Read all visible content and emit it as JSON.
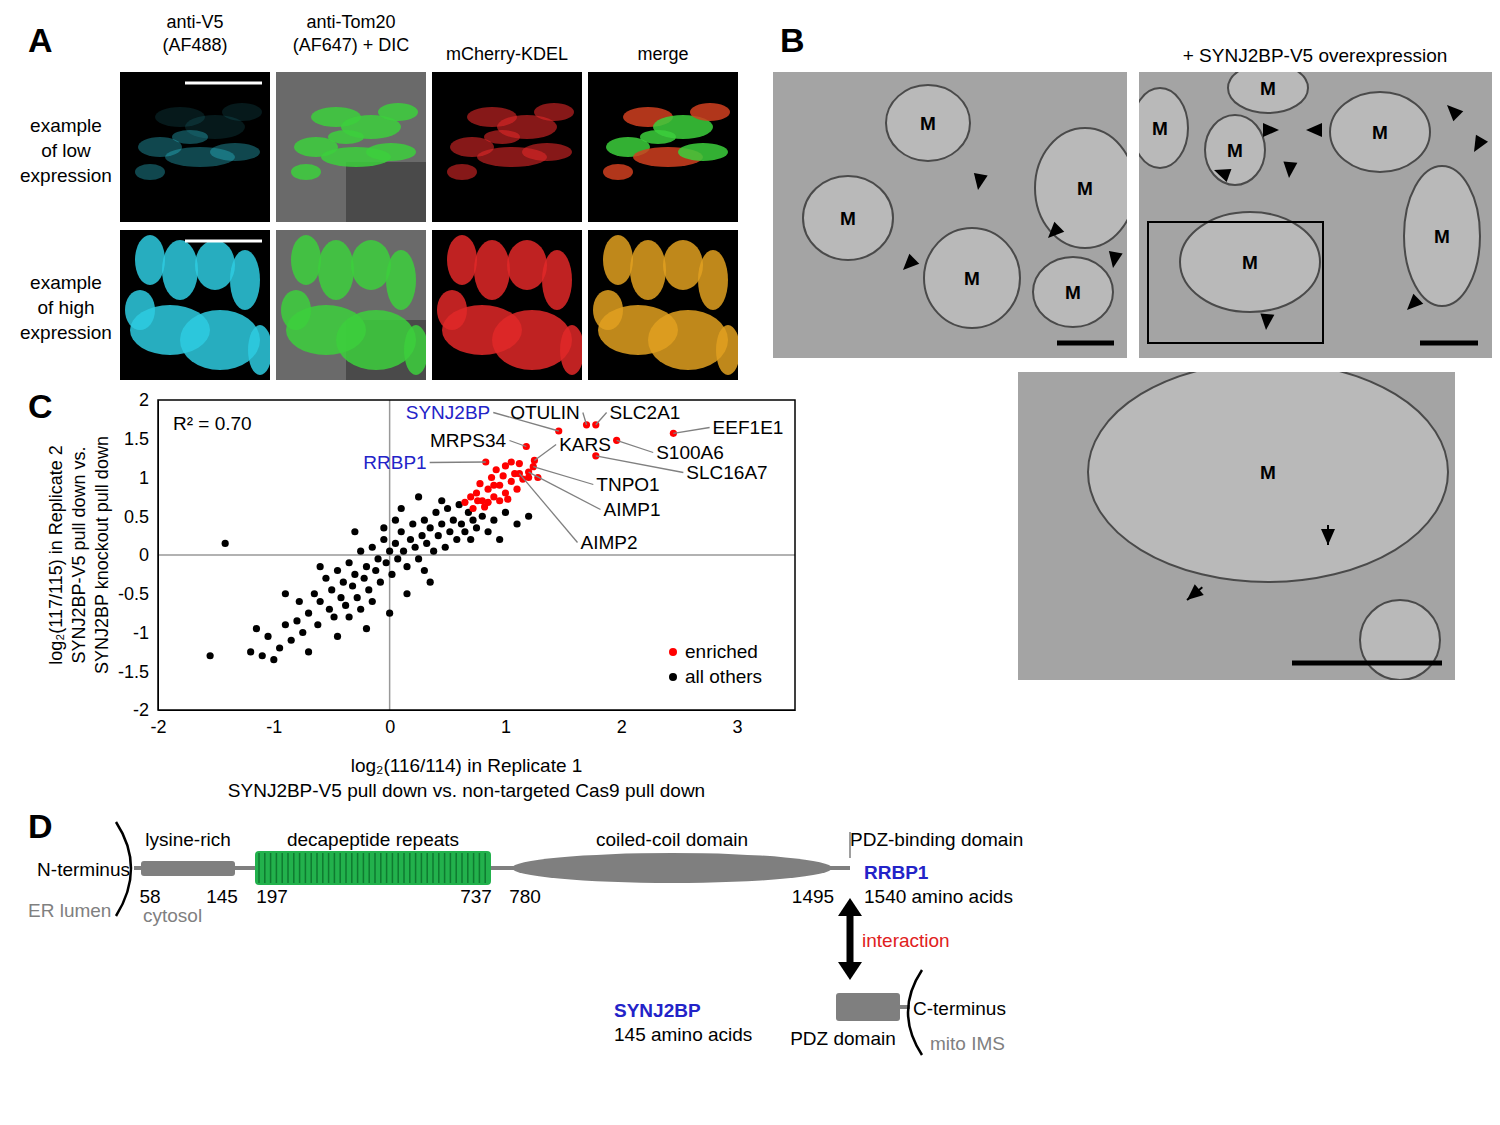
{
  "panel_labels": [
    "A",
    "B",
    "C",
    "D"
  ],
  "panel_a": {
    "column_headers": [
      [
        "anti-V5",
        "(AF488)"
      ],
      [
        "anti-Tom20",
        "(AF647) + DIC"
      ],
      [
        "mCherry-KDEL"
      ],
      [
        "merge"
      ]
    ],
    "row_labels": [
      [
        "example",
        "of low",
        "expression"
      ],
      [
        "example",
        "of high",
        "expression"
      ]
    ]
  },
  "panel_b": {
    "right_title": "+ SYNJ2BP-V5 overexpression",
    "left_labels": [
      "M",
      "M",
      "M",
      "M",
      "M"
    ],
    "right_labels": [
      "M",
      "M",
      "M",
      "M",
      "M",
      "M"
    ],
    "inset_labels": [
      "M"
    ]
  },
  "chart_data": {
    "type": "scatter",
    "x_label": [
      "log₂(116/114) in Replicate 1",
      "SYNJ2BP-V5 pull down vs. non-targeted Cas9 pull down"
    ],
    "y_label": [
      "log₂(117/115) in Replicate 2",
      "SYNJ2BP-V5 pull down vs.",
      "SYNJ2BP knockout pull down"
    ],
    "xlim": [
      -2,
      3.5
    ],
    "xticks": [
      -2,
      -1,
      0,
      1,
      2,
      3
    ],
    "ylim": [
      -2,
      2
    ],
    "yticks": [
      -2,
      -1.5,
      -1,
      -0.5,
      0,
      0.5,
      1,
      1.5,
      2
    ],
    "legend": "lower right",
    "marker": "circle",
    "stat_label": "R² = 0.70",
    "series": [
      {
        "name": "enriched",
        "color": "#ff0000",
        "x": [
          1.46,
          1.7,
          1.78,
          2.45,
          1.18,
          1.25,
          1.96,
          0.83,
          1.78,
          1.24,
          1.2,
          1.12,
          0.7,
          0.75,
          0.8,
          0.85,
          0.9,
          0.95,
          1.0,
          0.78,
          0.88,
          0.92,
          1.0,
          1.05,
          1.08,
          1.1,
          1.15,
          1.2,
          1.28,
          0.65,
          0.72,
          0.82,
          0.98,
          1.05,
          0.9,
          0.85,
          0.95,
          1.12,
          1.02,
          0.76
        ],
        "values": [
          1.6,
          1.68,
          1.68,
          1.57,
          1.4,
          1.22,
          1.48,
          1.2,
          1.28,
          1.14,
          1.07,
          1.05,
          0.75,
          0.8,
          0.7,
          0.85,
          0.75,
          0.9,
          0.8,
          0.92,
          1.0,
          1.1,
          1.15,
          0.95,
          1.05,
          0.85,
          0.98,
          1.0,
          1.0,
          0.68,
          0.6,
          0.62,
          1.02,
          1.2,
          0.9,
          0.68,
          0.7,
          1.18,
          0.72,
          0.7
        ]
      },
      {
        "name": "all others",
        "color": "#000000",
        "x": [
          -1.55,
          -1.42,
          -1.2,
          -1.1,
          -1.05,
          -1.0,
          -0.95,
          -0.9,
          -0.85,
          -0.8,
          -0.78,
          -0.75,
          -0.7,
          -0.65,
          -0.62,
          -0.6,
          -0.55,
          -0.52,
          -0.5,
          -0.48,
          -0.45,
          -0.42,
          -0.4,
          -0.38,
          -0.35,
          -0.32,
          -0.3,
          -0.28,
          -0.25,
          -0.22,
          -0.2,
          -0.18,
          -0.15,
          -0.12,
          -0.1,
          -0.08,
          -0.05,
          -0.03,
          0,
          0.02,
          0.05,
          0.07,
          0.1,
          0.12,
          0.15,
          0.18,
          0.2,
          0.22,
          0.25,
          0.28,
          0.3,
          0.32,
          0.35,
          0.38,
          0.4,
          0.42,
          0.45,
          0.48,
          0.5,
          0.52,
          0.55,
          0.58,
          0.6,
          0.62,
          0.65,
          0.68,
          0.7,
          0.72,
          0.75,
          0.8,
          0.85,
          0.9,
          0.95,
          1.0,
          1.1,
          1.2,
          -0.2,
          0,
          0.15,
          -0.35,
          0.3,
          -0.6,
          -0.3,
          0.1,
          -0.9,
          -1.15,
          -0.7,
          -0.45,
          0.05,
          -0.15,
          0.25,
          0.45,
          -0.05,
          0.35,
          -0.25
        ],
        "values": [
          -1.3,
          0.15,
          -1.25,
          -1.3,
          -1.05,
          -1.35,
          -1.2,
          -0.9,
          -1.1,
          -0.85,
          -0.6,
          -1.0,
          -0.75,
          -0.5,
          -0.9,
          -0.6,
          -0.3,
          -0.7,
          -0.45,
          -0.8,
          -0.2,
          -0.55,
          -0.35,
          -0.65,
          -0.1,
          -0.4,
          -0.25,
          -0.55,
          0.05,
          -0.3,
          -0.15,
          -0.45,
          0.1,
          -0.2,
          -0.05,
          -0.35,
          0.2,
          -0.1,
          0.05,
          -0.25,
          0.15,
          -0.05,
          0.3,
          0.05,
          -0.15,
          0.2,
          0.4,
          0.1,
          -0.05,
          0.25,
          0.45,
          0.15,
          0.35,
          0.05,
          0.55,
          0.25,
          0.4,
          0.1,
          0.6,
          0.3,
          0.45,
          0.2,
          0.65,
          0.4,
          0.3,
          0.55,
          0.2,
          0.45,
          0.35,
          0.5,
          0.3,
          0.45,
          0.2,
          0.55,
          0.4,
          0.5,
          -0.95,
          -0.75,
          -0.5,
          -0.8,
          -0.2,
          -0.15,
          0.3,
          0.6,
          -0.5,
          -0.95,
          -1.25,
          -1.05,
          0.45,
          -0.6,
          0.75,
          0.7,
          0.35,
          -0.35,
          -0.7
        ]
      }
    ],
    "annotations": [
      {
        "text": "SYNJ2BP",
        "x": 1.46,
        "y": 1.6,
        "color": "#2323c8"
      },
      {
        "text": "OTULIN",
        "x": 1.7,
        "y": 1.68
      },
      {
        "text": "SLC2A1",
        "x": 1.78,
        "y": 1.68
      },
      {
        "text": "EEF1E1",
        "x": 2.45,
        "y": 1.57
      },
      {
        "text": "MRPS34",
        "x": 1.18,
        "y": 1.4
      },
      {
        "text": "KARS",
        "x": 1.25,
        "y": 1.22
      },
      {
        "text": "S100A6",
        "x": 1.96,
        "y": 1.48
      },
      {
        "text": "RRBP1",
        "x": 0.83,
        "y": 1.2,
        "color": "#2323c8"
      },
      {
        "text": "SLC16A7",
        "x": 1.78,
        "y": 1.28
      },
      {
        "text": "TNPO1",
        "x": 1.24,
        "y": 1.14
      },
      {
        "text": "AIMP1",
        "x": 1.2,
        "y": 1.07
      },
      {
        "text": "AIMP2",
        "x": 1.12,
        "y": 1.05
      }
    ]
  },
  "panel_d": {
    "rrbp1": {
      "name": "RRBP1",
      "length_label": "1540 amino acids",
      "n_terminus": "N-terminus",
      "lumen": "ER lumen",
      "cytosol": "cytosol",
      "domains": [
        {
          "label": "lysine-rich",
          "start": 58,
          "end": 145
        },
        {
          "label": "decapeptide repeats",
          "start": 197,
          "end": 737
        },
        {
          "label": "coiled-coil domain",
          "start": 780,
          "end": 1495
        },
        {
          "label": "PDZ-binding domain"
        }
      ]
    },
    "interaction": "interaction",
    "synj2bp": {
      "name": "SYNJ2BP",
      "length_label": "145 amino acids",
      "domain": "PDZ domain",
      "c_terminus": "C-terminus",
      "compartment": "mito IMS"
    }
  }
}
